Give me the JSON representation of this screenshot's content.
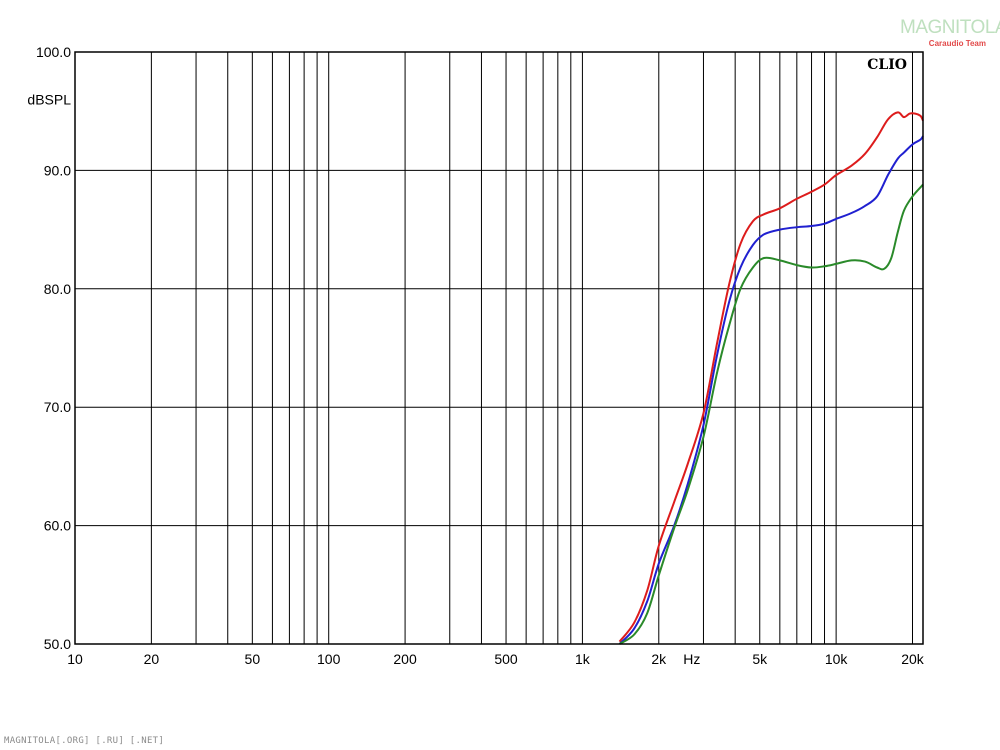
{
  "watermark": {
    "main": "MAGNITOLA",
    "sub": "Caraudio Team"
  },
  "footer": "MAGNITOLA[.ORG] [.RU] [.NET]",
  "chart_data": {
    "type": "line",
    "brand_label": "CLIO",
    "ylabel": "dBSPL",
    "xlabel": "Hz",
    "x_scale": "log",
    "xlim": [
      10,
      22000
    ],
    "ylim": [
      50,
      100
    ],
    "grid": true,
    "y_ticks": [
      {
        "value": 50,
        "label": "50.0"
      },
      {
        "value": 60,
        "label": "60.0"
      },
      {
        "value": 70,
        "label": "70.0"
      },
      {
        "value": 80,
        "label": "80.0"
      },
      {
        "value": 90,
        "label": "90.0"
      },
      {
        "value": 100,
        "label": "100.0"
      }
    ],
    "x_ticks": [
      {
        "value": 10,
        "label": "10"
      },
      {
        "value": 20,
        "label": "20"
      },
      {
        "value": 50,
        "label": "50"
      },
      {
        "value": 100,
        "label": "100"
      },
      {
        "value": 200,
        "label": "200"
      },
      {
        "value": 500,
        "label": "500"
      },
      {
        "value": 1000,
        "label": "1k"
      },
      {
        "value": 2000,
        "label": "2k"
      },
      {
        "value": 5000,
        "label": "5k"
      },
      {
        "value": 10000,
        "label": "10k"
      },
      {
        "value": 20000,
        "label": "20k"
      }
    ],
    "x_minor_grid": [
      30,
      40,
      60,
      70,
      80,
      90,
      300,
      400,
      600,
      700,
      800,
      900,
      3000,
      4000,
      6000,
      7000,
      8000,
      9000
    ],
    "series": [
      {
        "color": "#dd1c1c",
        "x": [
          1400,
          1600,
          1800,
          2000,
          2300,
          2600,
          3000,
          3400,
          3800,
          4200,
          4700,
          5200,
          6000,
          7000,
          8000,
          9000,
          10000,
          11500,
          13000,
          14500,
          16000,
          17500,
          18500,
          19500,
          20500,
          21500,
          22000
        ],
        "y": [
          50.2,
          51.8,
          54.5,
          58.3,
          62.0,
          65.2,
          69.5,
          75.5,
          80.5,
          83.8,
          85.7,
          86.3,
          86.8,
          87.6,
          88.2,
          88.8,
          89.6,
          90.4,
          91.4,
          92.8,
          94.3,
          94.9,
          94.5,
          94.8,
          94.8,
          94.6,
          94.2
        ]
      },
      {
        "color": "#2020d0",
        "x": [
          1400,
          1600,
          1800,
          2000,
          2300,
          2600,
          3000,
          3400,
          3800,
          4200,
          4700,
          5200,
          6000,
          7000,
          8000,
          9000,
          10000,
          11500,
          13000,
          14500,
          16000,
          17500,
          18500,
          20000,
          21500,
          22000
        ],
        "y": [
          50.0,
          51.3,
          53.6,
          56.8,
          60.0,
          63.5,
          68.5,
          74.5,
          79.0,
          81.8,
          83.7,
          84.6,
          85.0,
          85.2,
          85.3,
          85.5,
          85.9,
          86.4,
          87.0,
          87.8,
          89.6,
          91.0,
          91.5,
          92.2,
          92.6,
          92.9
        ]
      },
      {
        "color": "#2a8a2a",
        "x": [
          1400,
          1600,
          1800,
          2000,
          2300,
          2600,
          3000,
          3400,
          3800,
          4200,
          4700,
          5200,
          6000,
          7000,
          8000,
          9000,
          10000,
          11500,
          13000,
          14500,
          15500,
          16500,
          17500,
          18500,
          20000,
          22000
        ],
        "y": [
          50.0,
          50.8,
          52.6,
          55.8,
          59.8,
          63.0,
          67.5,
          73.0,
          77.0,
          80.0,
          81.8,
          82.6,
          82.4,
          82.0,
          81.8,
          81.9,
          82.1,
          82.4,
          82.3,
          81.8,
          81.7,
          82.6,
          84.8,
          86.6,
          87.8,
          88.8
        ]
      }
    ]
  }
}
